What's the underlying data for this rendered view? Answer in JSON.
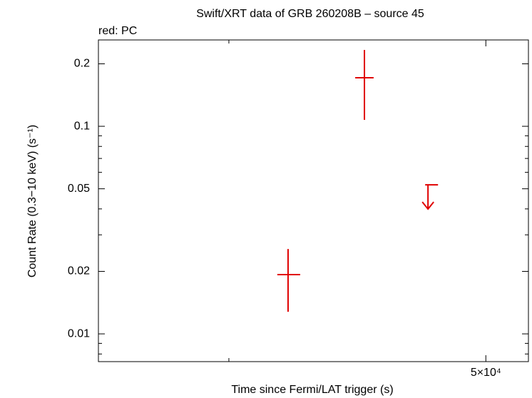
{
  "chart_data": {
    "type": "scatter",
    "title": "Swift/XRT data of GRB 260208B – source 45",
    "subtitle": "red: PC",
    "x_label": "Time since Fermi/LAT trigger (s)",
    "y_label": "Count Rate (0.3−10 keV) (s⁻¹)",
    "xscale": "log",
    "yscale": "log",
    "xlim": [
      12560,
      58200
    ],
    "ylim": [
      0.00735,
      0.2606
    ],
    "xticks": [
      {
        "value": 50000,
        "label": "5×10⁴"
      }
    ],
    "xminorticks": [
      20000
    ],
    "yticks": [
      0.01,
      0.02,
      0.05,
      0.1,
      0.2
    ],
    "yminorticks": [
      0.008,
      0.009,
      0.03,
      0.04,
      0.06,
      0.07,
      0.08,
      0.09
    ],
    "series": [
      {
        "name": "PC",
        "color": "#e00000",
        "x": [
          24700,
          32430,
          40680
        ],
        "xmin": [
          23770,
          31380,
          40270
        ],
        "xmax": [
          25790,
          33510,
          42160
        ],
        "values": [
          0.01929,
          0.1713,
          0.05226
        ],
        "ymin": [
          0.01278,
          0.1074,
          null
        ],
        "ymax": [
          0.02564,
          0.2332,
          null
        ],
        "upper_limit": [
          false,
          false,
          true
        ]
      }
    ]
  }
}
